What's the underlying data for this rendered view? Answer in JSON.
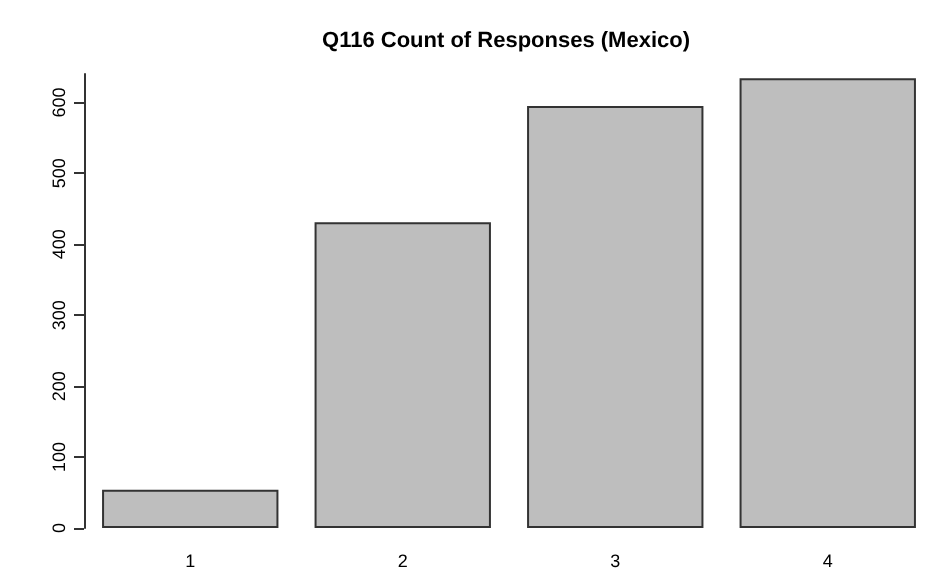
{
  "chart_data": {
    "type": "bar",
    "title": "Q116 Count of Responses (Mexico)",
    "categories": [
      "1",
      "2",
      "3",
      "4"
    ],
    "values": [
      54,
      431,
      595,
      634
    ],
    "color": "#bebebe",
    "ylim": [
      0,
      640
    ],
    "yticks": [
      0,
      100,
      200,
      300,
      400,
      500,
      600
    ],
    "grid": false
  }
}
